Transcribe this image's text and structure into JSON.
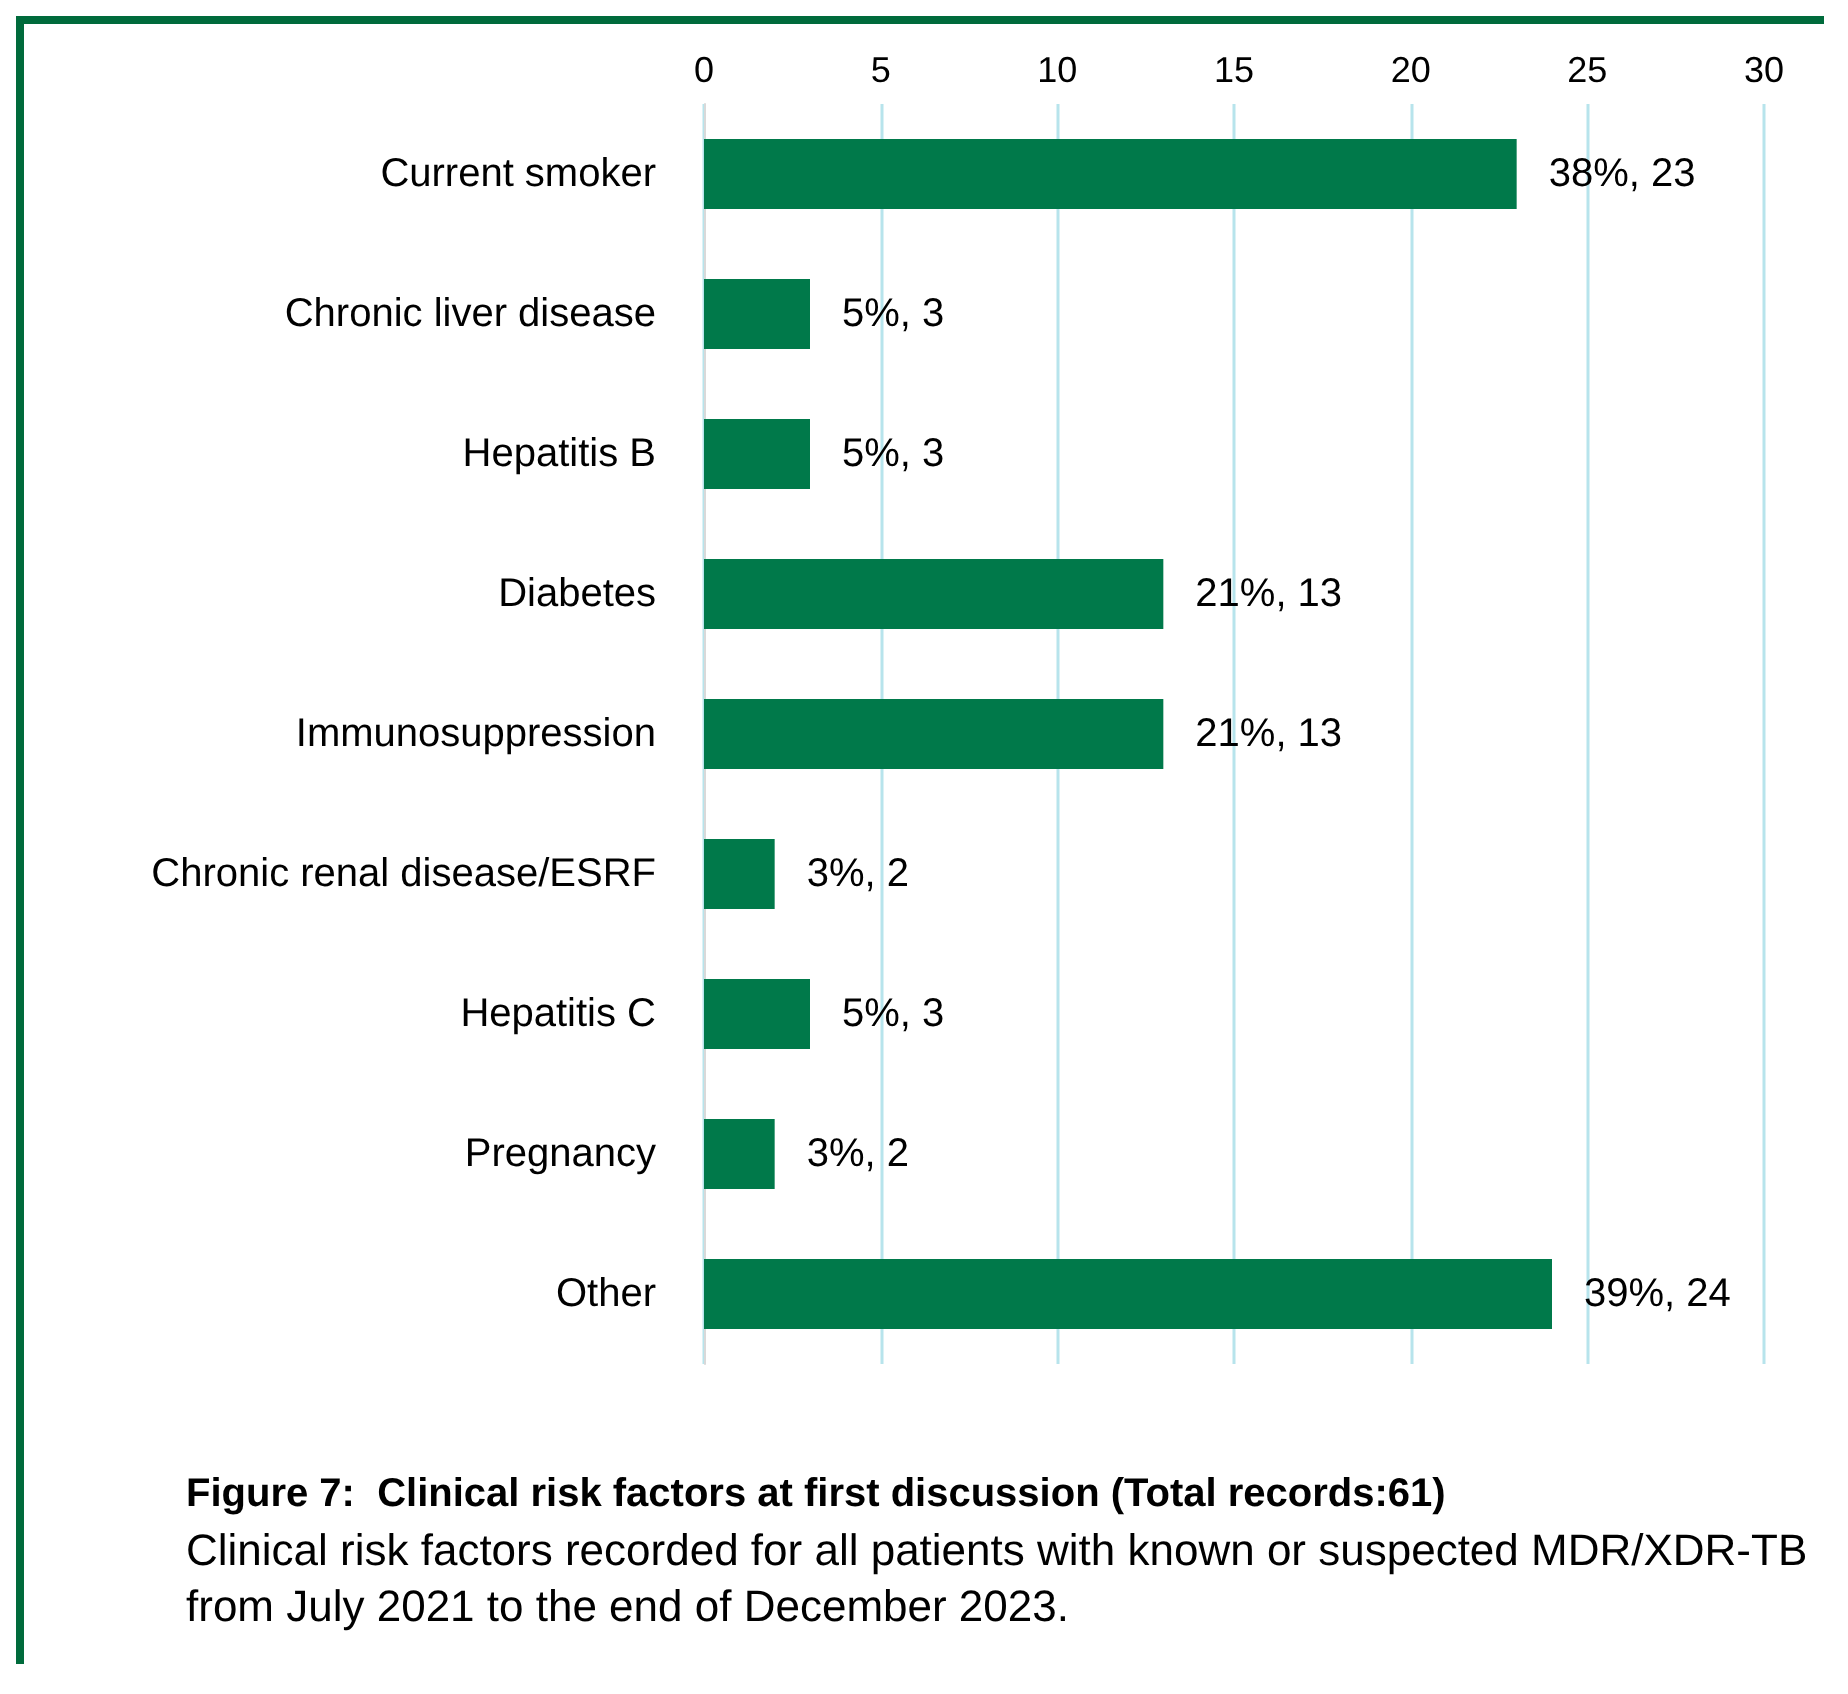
{
  "chart_data": {
    "type": "bar",
    "orientation": "horizontal",
    "title": "Figure 7:  Clinical risk factors at first discussion (Total records:61)",
    "subtitle": "Clinical risk factors recorded for all patients with known or suspected MDR/XDR-TB from July 2021 to the end of December 2023.",
    "categories": [
      "Current smoker",
      "Chronic liver disease",
      "Hepatitis B",
      "Diabetes",
      "Immunosuppression",
      "Chronic renal disease/ESRF",
      "Hepatitis C",
      "Pregnancy",
      "Other"
    ],
    "values": [
      23,
      3,
      3,
      13,
      13,
      2,
      3,
      2,
      24
    ],
    "value_labels": [
      "38%, 23",
      "5%, 3",
      "5%, 3",
      "21%, 13",
      "21%, 13",
      "3%, 2",
      "5%, 3",
      "3%, 2",
      "39%, 24"
    ],
    "color": "#00794a",
    "xlim": [
      0,
      30
    ],
    "xticks": [
      0,
      5,
      10,
      15,
      20,
      25,
      30
    ],
    "grid": "x"
  }
}
